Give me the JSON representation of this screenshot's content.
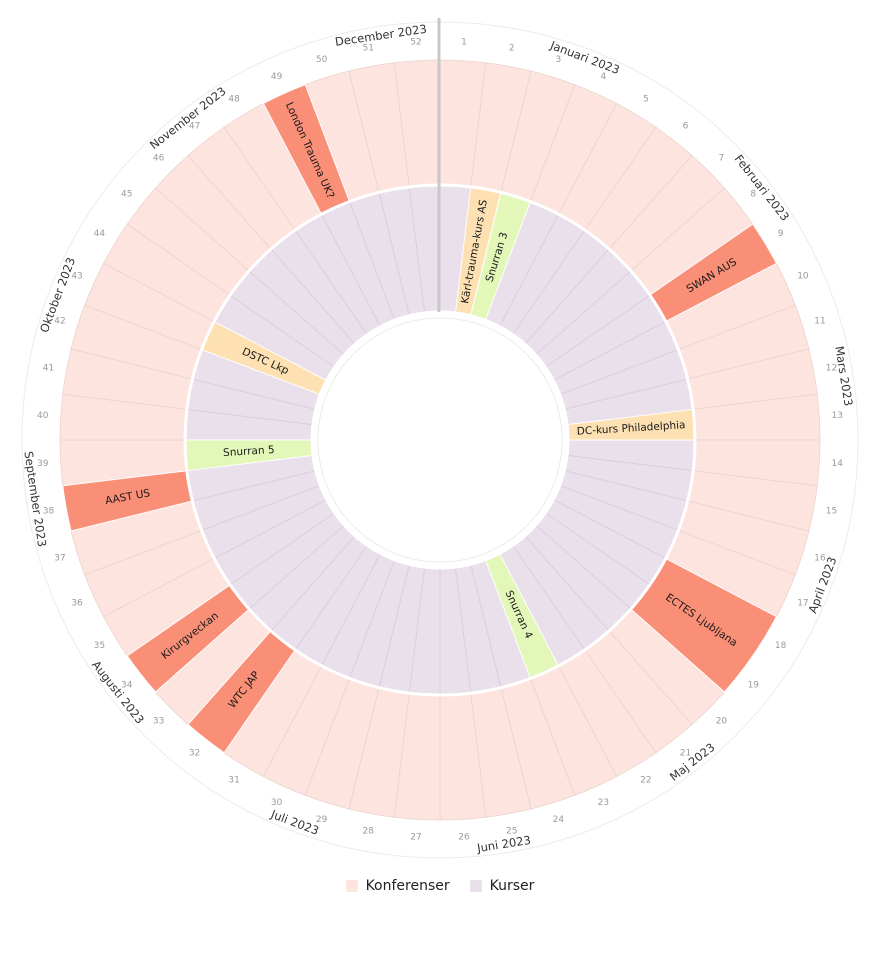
{
  "chart_data": {
    "type": "radial-calendar",
    "weeks": 52,
    "week_labels": [
      "1",
      "2",
      "3",
      "4",
      "5",
      "6",
      "7",
      "8",
      "9",
      "10",
      "11",
      "12",
      "13",
      "14",
      "15",
      "16",
      "17",
      "18",
      "19",
      "20",
      "21",
      "22",
      "23",
      "24",
      "25",
      "26",
      "27",
      "28",
      "29",
      "30",
      "31",
      "32",
      "33",
      "34",
      "35",
      "36",
      "37",
      "38",
      "39",
      "40",
      "41",
      "42",
      "43",
      "44",
      "45",
      "46",
      "47",
      "48",
      "49",
      "50",
      "51",
      "52"
    ],
    "months": [
      {
        "label": "Januari 2023",
        "week": 3
      },
      {
        "label": "Februari 2023",
        "week": 7.5
      },
      {
        "label": "Mars 2023",
        "week": 11.7
      },
      {
        "label": "April 2023",
        "week": 16
      },
      {
        "label": "Maj 2023",
        "week": 20.5
      },
      {
        "label": "Juni 2023",
        "week": 24.7
      },
      {
        "label": "Juli 2023",
        "week": 29
      },
      {
        "label": "Augusti 2023",
        "week": 33.5
      },
      {
        "label": "September 2023",
        "week": 37.8
      },
      {
        "label": "Oktober 2023",
        "week": 42
      },
      {
        "label": "November 2023",
        "week": 46.5
      },
      {
        "label": "December 2023",
        "week": 50.8
      }
    ],
    "series": [
      {
        "name": "Konferenser",
        "color": "#fde4de"
      },
      {
        "name": "Kurser",
        "color": "#e9e0ec"
      }
    ],
    "conference_events": [
      {
        "label": "SWAN AUS",
        "start": 9,
        "end": 9,
        "color": "#fa8f78"
      },
      {
        "label": "ECTES Ljubljana",
        "start": 18,
        "end": 19,
        "color": "#fa8f78"
      },
      {
        "label": "WTC JAP",
        "start": 32,
        "end": 32,
        "color": "#fa8f78"
      },
      {
        "label": "Kirurgveckan",
        "start": 34,
        "end": 34,
        "color": "#fa8f78"
      },
      {
        "label": "AAST US",
        "start": 38,
        "end": 38,
        "color": "#fa8f78"
      },
      {
        "label": "London Trauma UK?",
        "start": 49,
        "end": 49,
        "color": "#fa8f78"
      }
    ],
    "course_events": [
      {
        "label": "Kärl-trauma-kurs AS",
        "start": 2,
        "end": 2,
        "color": "#fde1b2"
      },
      {
        "label": "Snurran 3",
        "start": 3,
        "end": 3,
        "color": "#e2f7b8"
      },
      {
        "label": "DC-kurs Philadelphia",
        "start": 13,
        "end": 13,
        "color": "#fde1b2"
      },
      {
        "label": "Snurran 4",
        "start": 23,
        "end": 23,
        "color": "#e2f7b8"
      },
      {
        "label": "Snurran 5",
        "start": 39,
        "end": 39,
        "color": "#e2f7b8"
      },
      {
        "label": "DSTC Lkp",
        "start": 43,
        "end": 43,
        "color": "#fde1b2"
      }
    ]
  }
}
